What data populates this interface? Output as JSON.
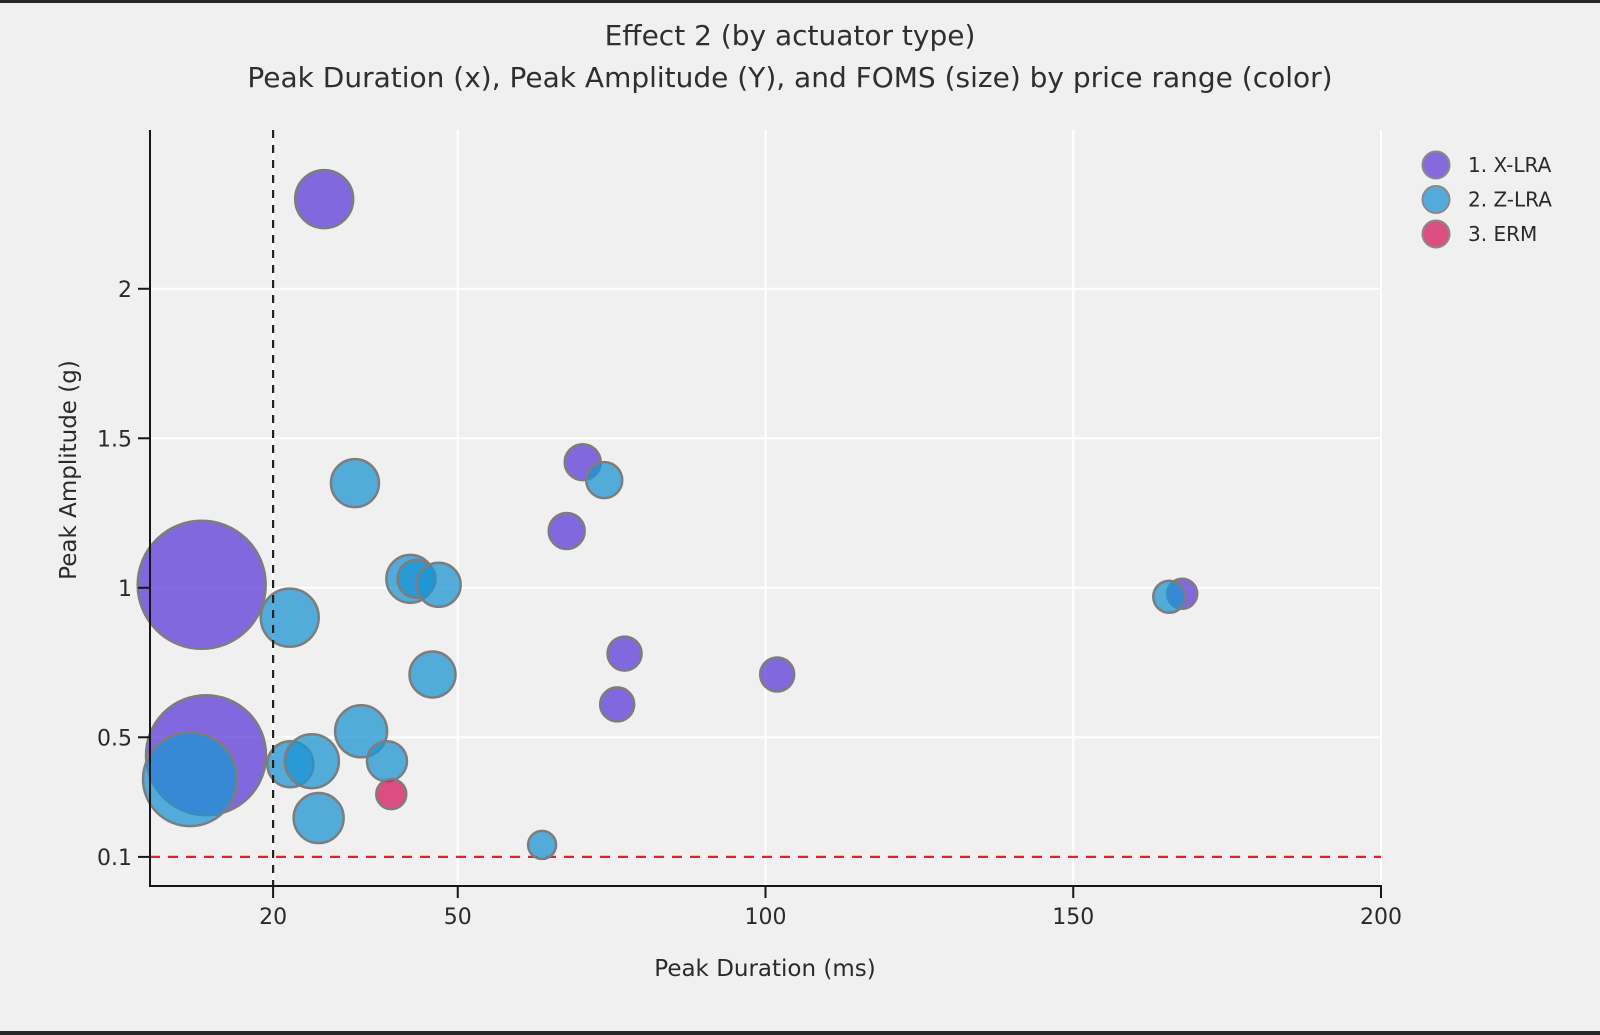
{
  "frame": {
    "background": "#f0f0f0",
    "border_color": "#262626"
  },
  "chart": {
    "title_line1": "Effect 2 (by actuator type)",
    "title_line2": "Peak Duration (x), Peak Amplitude (Y), and FOMS (size) by price range (color)",
    "xlabel": "Peak Duration (ms)",
    "ylabel": "Peak Amplitude (g)"
  },
  "chart_data": {
    "type": "scatter",
    "subtype": "bubble",
    "title": "Effect 2 (by actuator type)",
    "subtitle": "Peak Duration (x), Peak Amplitude (Y), and FOMS (size) by price range (color)",
    "xlabel": "Peak Duration (ms)",
    "ylabel": "Peak Amplitude (g)",
    "xlim": [
      0,
      200
    ],
    "ylim": [
      0.006,
      2.531
    ],
    "xticks": [
      20,
      50,
      100,
      150,
      200
    ],
    "yticks": [
      2,
      1.5,
      1,
      0.5,
      0.1
    ],
    "grid": true,
    "grid_color": "#ffffff",
    "plot_bg": "#f0f0f0",
    "axis_color": "#161616",
    "tick_label_color": "#2a2a2a",
    "bubble_stroke": "#7d7d7d",
    "bubble_opacity": 0.75,
    "legend_position": "top-right",
    "size_encoding": "FOMS",
    "color_encoding": "price range",
    "reference_lines": [
      {
        "axis": "x",
        "value": 20,
        "style": "dashed",
        "color": "#222222",
        "layer": "above"
      },
      {
        "axis": "y",
        "value": 0.1,
        "style": "dashed",
        "color": "#e32222",
        "layer": "below"
      }
    ],
    "series": [
      {
        "name": "1. X-LRA",
        "color": "#5e3bd8",
        "legend_color": "#8669dd",
        "points": [
          {
            "x": 28.3,
            "y": 2.3,
            "r": 29
          },
          {
            "x": 8.4,
            "y": 1.01,
            "r": 64
          },
          {
            "x": 9.1,
            "y": 0.44,
            "r": 60
          },
          {
            "x": 70.3,
            "y": 1.42,
            "r": 18
          },
          {
            "x": 67.7,
            "y": 1.19,
            "r": 18
          },
          {
            "x": 77.1,
            "y": 0.78,
            "r": 17
          },
          {
            "x": 75.9,
            "y": 0.61,
            "r": 17
          },
          {
            "x": 101.9,
            "y": 0.71,
            "r": 17
          },
          {
            "x": 167.7,
            "y": 0.98,
            "r": 15
          }
        ]
      },
      {
        "name": "2. Z-LRA",
        "color": "#1d94d2",
        "legend_color": "#55aadc",
        "points": [
          {
            "x": 33.3,
            "y": 1.35,
            "r": 24
          },
          {
            "x": 73.8,
            "y": 1.36,
            "r": 18
          },
          {
            "x": 22.7,
            "y": 0.9,
            "r": 29
          },
          {
            "x": 42.3,
            "y": 1.03,
            "r": 24
          },
          {
            "x": 43.3,
            "y": 1.03,
            "r": 19
          },
          {
            "x": 46.9,
            "y": 1.01,
            "r": 22
          },
          {
            "x": 45.9,
            "y": 0.71,
            "r": 23
          },
          {
            "x": 34.3,
            "y": 0.52,
            "r": 26
          },
          {
            "x": 22.8,
            "y": 0.41,
            "r": 23
          },
          {
            "x": 26.3,
            "y": 0.42,
            "r": 27
          },
          {
            "x": 38.5,
            "y": 0.42,
            "r": 20
          },
          {
            "x": 27.4,
            "y": 0.23,
            "r": 25
          },
          {
            "x": 6.5,
            "y": 0.36,
            "r": 47
          },
          {
            "x": 63.7,
            "y": 0.14,
            "r": 14
          },
          {
            "x": 165.6,
            "y": 0.97,
            "r": 16
          }
        ]
      },
      {
        "name": "3. ERM",
        "color": "#d6175e",
        "legend_color": "#da4e80",
        "points": [
          {
            "x": 39.2,
            "y": 0.31,
            "r": 15
          }
        ]
      }
    ]
  }
}
